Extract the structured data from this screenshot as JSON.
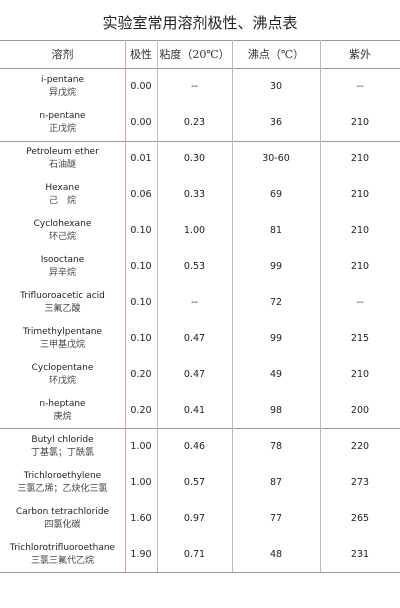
{
  "title": "实验室常用溶剂极性、沸点表",
  "table": {
    "header": [
      "溶剂",
      "极性",
      "粘度（20℃）",
      "沸点（℃）",
      "紫外"
    ],
    "rows": [
      [
        "i-pentane",
        "异戊烷",
        "0.00",
        "--",
        "30",
        "--"
      ],
      [
        "n-pentane",
        "正戊烷",
        "0.00",
        "0.23",
        "36",
        "210"
      ],
      [
        "Petroleum ether",
        "石油醚",
        "0.01",
        "0.30",
        "30-60",
        "210"
      ],
      [
        "Hexane",
        "己　烷",
        "0.06",
        "0.33",
        "69",
        "210"
      ],
      [
        "Cyclohexane",
        "环己烷",
        "0.10",
        "1.00",
        "81",
        "210"
      ],
      [
        "Isooctane",
        "异辛烷",
        "0.10",
        "0.53",
        "99",
        "210"
      ],
      [
        "Trifluoroacetic acid",
        "三氟乙酸",
        "0.10",
        "--",
        "72",
        "--"
      ],
      [
        "Trimethylpentane",
        "三甲基戊烷",
        "0.10",
        "0.47",
        "99",
        "215"
      ],
      [
        "Cyclopentane",
        "环戊烷",
        "0.20",
        "0.47",
        "49",
        "210"
      ],
      [
        "n-heptane",
        "庚烷",
        "0.20",
        "0.41",
        "98",
        "200"
      ],
      [
        "Butyl chloride",
        "丁基氯；丁酰氯",
        "1.00",
        "0.46",
        "78",
        "220"
      ],
      [
        "Trichloroethylene",
        "三氯乙烯；乙炔化三氯",
        "1.00",
        "0.57",
        "87",
        "273"
      ],
      [
        "Carbon tetrachloride",
        "四氯化碳",
        "1.60",
        "0.97",
        "77",
        "265"
      ],
      [
        "Trichlorotrifluoroethane",
        "三氯三氟代乙烷",
        "1.90",
        "0.71",
        "48",
        "231"
      ]
    ]
  }
}
